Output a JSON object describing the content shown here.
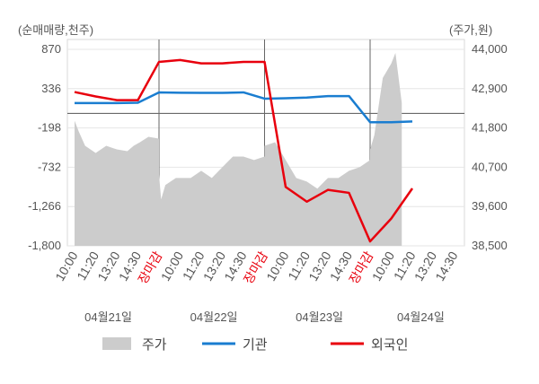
{
  "chart_data": {
    "type": "line",
    "left_axis_unit": "(순매매량,천주)",
    "right_axis_unit": "(주가,원)",
    "left_ticks": [
      "870",
      "336",
      "-198",
      "-732",
      "-1,266",
      "-1,800"
    ],
    "left_range": [
      -1800,
      870
    ],
    "right_ticks": [
      "44,000",
      "42,900",
      "41,800",
      "40,700",
      "39,600",
      "38,500"
    ],
    "right_range": [
      38500,
      44000
    ],
    "x_labels": [
      {
        "text": "10:00",
        "red": false
      },
      {
        "text": "11:20",
        "red": false
      },
      {
        "text": "13:20",
        "red": false
      },
      {
        "text": "14:30",
        "red": false
      },
      {
        "text": "장마감",
        "red": true
      },
      {
        "text": "10:00",
        "red": false
      },
      {
        "text": "11:20",
        "red": false
      },
      {
        "text": "13:20",
        "red": false
      },
      {
        "text": "14:30",
        "red": false
      },
      {
        "text": "장마감",
        "red": true
      },
      {
        "text": "10:00",
        "red": false
      },
      {
        "text": "11:20",
        "red": false
      },
      {
        "text": "13:20",
        "red": false
      },
      {
        "text": "14:30",
        "red": false
      },
      {
        "text": "장마감",
        "red": true
      },
      {
        "text": "10:00",
        "red": false
      },
      {
        "text": "11:20",
        "red": false
      },
      {
        "text": "13:20",
        "red": false
      },
      {
        "text": "14:30",
        "red": false
      }
    ],
    "dates": [
      "04월21일",
      "04월22일",
      "04월23일",
      "04월24일"
    ],
    "day_boundaries": [
      4,
      9,
      14
    ],
    "series": [
      {
        "name": "기관",
        "color": "#1a7dd0",
        "x": [
          0,
          1,
          2,
          3,
          4,
          5,
          6,
          7,
          8,
          9,
          10,
          11,
          12,
          13,
          14,
          15,
          16
        ],
        "values": [
          140,
          140,
          140,
          145,
          285,
          280,
          278,
          279,
          285,
          200,
          205,
          215,
          235,
          235,
          -120,
          -120,
          -110
        ]
      },
      {
        "name": "외국인",
        "color": "#e8000d",
        "x": [
          0,
          1,
          2,
          3,
          4,
          5,
          6,
          7,
          8,
          9,
          10,
          11,
          12,
          13,
          14,
          15,
          16
        ],
        "values": [
          290,
          230,
          180,
          180,
          700,
          725,
          680,
          680,
          700,
          700,
          -1000,
          -1200,
          -1040,
          -1080,
          -1740,
          -1430,
          -1020
        ]
      }
    ],
    "price": {
      "name": "주가",
      "color": "#cccccc",
      "segments": [
        {
          "x": [
            0.0,
            0.2,
            0.5,
            1.0,
            1.5,
            2.0,
            2.5,
            2.8,
            3.1,
            3.5,
            4.0
          ],
          "values": [
            42000,
            41700,
            41300,
            41100,
            41300,
            41200,
            41150,
            41300,
            41400,
            41550,
            41500
          ]
        },
        {
          "x": [
            4.0,
            4.1,
            4.3,
            4.8,
            5.5,
            6.0,
            6.5,
            7.0,
            7.5,
            8.0,
            8.5,
            9.0
          ],
          "values": [
            40500,
            39800,
            40200,
            40400,
            40400,
            40600,
            40400,
            40700,
            41000,
            41000,
            40900,
            41000
          ]
        },
        {
          "x": [
            9.0,
            9.5,
            10.0,
            10.5,
            11.0,
            11.5,
            12.0,
            12.5,
            13.0,
            13.5,
            14.0
          ],
          "values": [
            41300,
            41400,
            40900,
            40400,
            40300,
            40100,
            40400,
            40400,
            40600,
            40700,
            40900
          ]
        },
        {
          "x": [
            14.0,
            14.2,
            14.4,
            14.6,
            15.0,
            15.2,
            15.5
          ],
          "values": [
            41200,
            41600,
            42400,
            43200,
            43600,
            43900,
            42500
          ]
        }
      ]
    },
    "legend": [
      "주가",
      "기관",
      "외국인"
    ]
  }
}
